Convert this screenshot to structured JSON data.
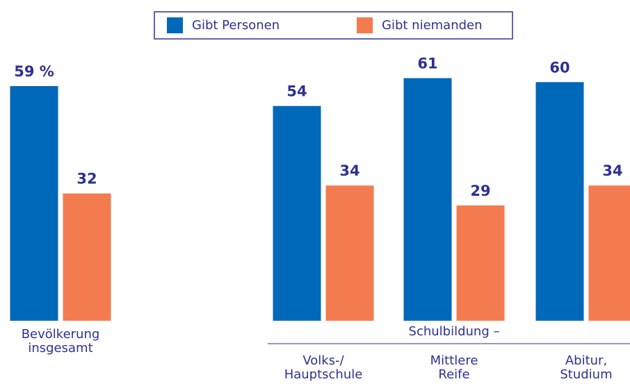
{
  "chart_data": {
    "type": "bar",
    "categories": [
      "Bevölkerung\ninsgesamt",
      "Volks-/\nHauptschule",
      "Mittlere\nReife",
      "Abitur,\nStudium"
    ],
    "group_label": "Schulbildung –",
    "series": [
      {
        "name": "Gibt Personen",
        "color": "#0068b8",
        "values": [
          59,
          54,
          61,
          60
        ],
        "value_labels": [
          "59 %",
          "54",
          "61",
          "60"
        ]
      },
      {
        "name": "Gibt niemanden",
        "color": "#f47b4f",
        "values": [
          32,
          34,
          29,
          34
        ]
      }
    ],
    "ylim": [
      0,
      59
    ]
  }
}
